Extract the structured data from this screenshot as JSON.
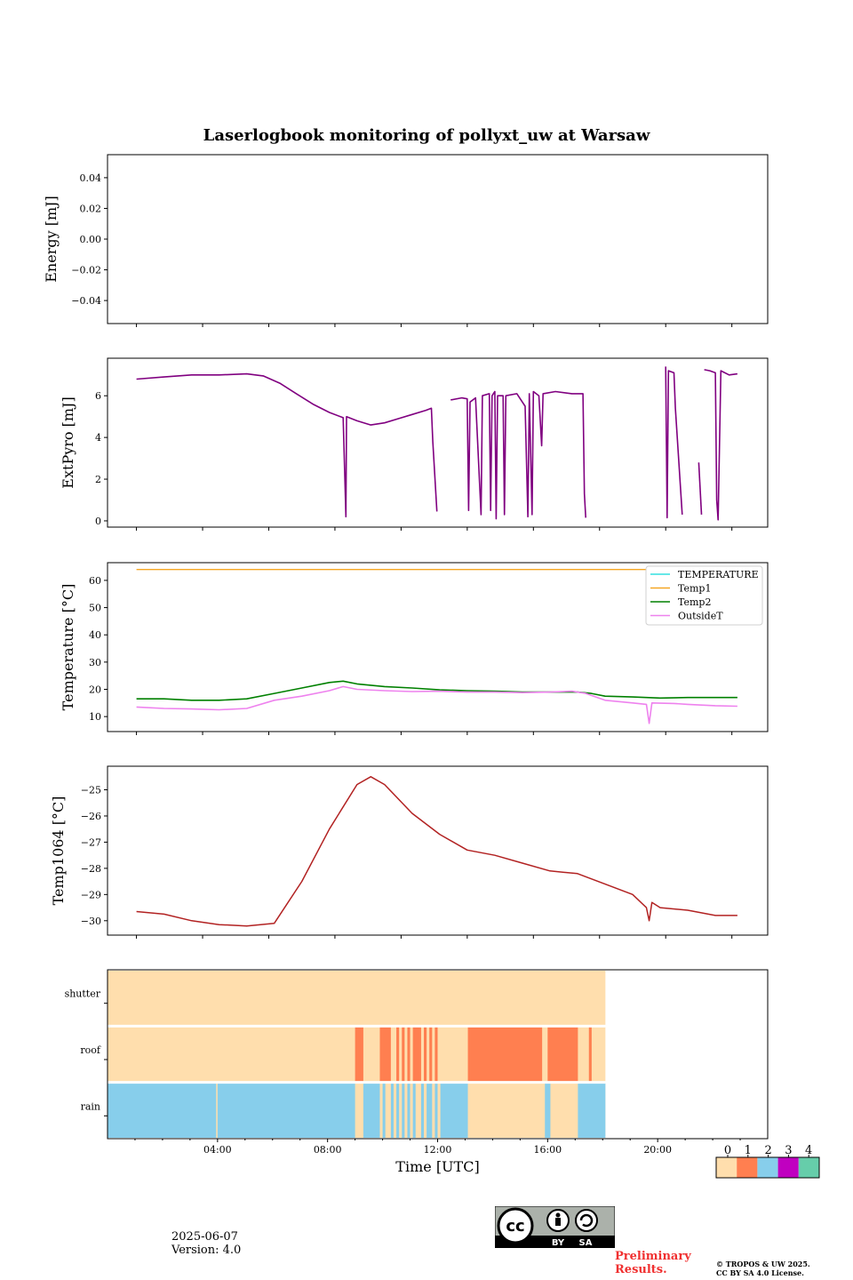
{
  "title": "Laserlogbook monitoring of pollyxt_uw at Warsaw",
  "footer": {
    "date": "2025-06-07",
    "version": "Version: 4.0",
    "preliminary_line1": "Preliminary",
    "preliminary_line2": "Results.",
    "copyright_line1": "© TROPOS & UW 2025.",
    "copyright_line2": "CC BY SA 4.0 License.",
    "cc_label": "cc",
    "by_label": "BY",
    "sa_label": "SA"
  },
  "chart_data": [
    {
      "type": "line",
      "name": "energy",
      "ylabel": "Energy [mJ]",
      "ylim": [
        -0.055,
        0.055
      ],
      "yticks": [
        0.04,
        0.02,
        0.0,
        -0.02,
        -0.04
      ],
      "ytick_labels": [
        "0.04",
        "0.02",
        "0.00",
        "−0.02",
        "−0.04"
      ],
      "series": []
    },
    {
      "type": "line",
      "name": "extpyro",
      "ylabel": "ExtPyro [mJ]",
      "ylim": [
        -0.3,
        7.8
      ],
      "yticks": [
        0,
        2,
        4,
        6
      ],
      "ytick_labels": [
        "0",
        "2",
        "4",
        "6"
      ],
      "color": "#800080",
      "segments": [
        [
          [
            0.0,
            6.8
          ],
          [
            1.0,
            6.9
          ],
          [
            2.0,
            7.0
          ],
          [
            3.0,
            7.0
          ],
          [
            4.0,
            7.05
          ],
          [
            4.6,
            6.95
          ],
          [
            5.2,
            6.6
          ],
          [
            5.8,
            6.1
          ],
          [
            6.4,
            5.6
          ],
          [
            7.0,
            5.2
          ],
          [
            7.5,
            4.95
          ],
          [
            7.6,
            0.2
          ],
          [
            7.62,
            5.0
          ],
          [
            8.0,
            4.8
          ],
          [
            8.5,
            4.6
          ],
          [
            9.0,
            4.7
          ],
          [
            9.5,
            4.9
          ],
          [
            10.0,
            5.1
          ],
          [
            10.5,
            5.3
          ],
          [
            10.7,
            5.4
          ],
          [
            10.75,
            3.8
          ],
          [
            10.9,
            0.45
          ]
        ],
        [
          [
            11.4,
            5.8
          ],
          [
            11.8,
            5.9
          ],
          [
            12.0,
            5.85
          ],
          [
            12.05,
            0.5
          ],
          [
            12.1,
            5.7
          ],
          [
            12.3,
            5.9
          ],
          [
            12.5,
            0.3
          ],
          [
            12.55,
            6.0
          ],
          [
            12.8,
            6.1
          ],
          [
            12.85,
            0.5
          ],
          [
            12.9,
            6.0
          ],
          [
            13.0,
            6.2
          ],
          [
            13.05,
            0.1
          ],
          [
            13.1,
            6.0
          ],
          [
            13.3,
            6.0
          ],
          [
            13.35,
            0.3
          ],
          [
            13.4,
            6.0
          ],
          [
            13.8,
            6.1
          ],
          [
            14.1,
            5.5
          ],
          [
            14.2,
            0.2
          ],
          [
            14.25,
            6.1
          ],
          [
            14.35,
            0.3
          ],
          [
            14.4,
            6.2
          ],
          [
            14.6,
            6.0
          ],
          [
            14.7,
            3.6
          ],
          [
            14.75,
            6.1
          ],
          [
            15.2,
            6.2
          ],
          [
            15.8,
            6.1
          ],
          [
            16.2,
            6.1
          ],
          [
            16.25,
            1.3
          ],
          [
            16.3,
            0.15
          ]
        ],
        [
          [
            19.2,
            7.4
          ],
          [
            19.25,
            0.15
          ],
          [
            19.3,
            7.2
          ],
          [
            19.5,
            7.1
          ],
          [
            19.55,
            5.4
          ],
          [
            19.8,
            0.3
          ]
        ],
        [
          [
            20.4,
            2.8
          ],
          [
            20.5,
            0.3
          ]
        ],
        [
          [
            20.6,
            7.25
          ],
          [
            20.8,
            7.2
          ],
          [
            21.0,
            7.1
          ],
          [
            21.05,
            1.0
          ],
          [
            21.1,
            0.05
          ],
          [
            21.2,
            7.2
          ],
          [
            21.5,
            7.0
          ],
          [
            21.8,
            7.05
          ]
        ]
      ]
    },
    {
      "type": "line",
      "name": "temperature",
      "ylabel": "Temperature [°C]",
      "ylim": [
        4.5,
        66.5
      ],
      "yticks": [
        10,
        20,
        30,
        40,
        50,
        60
      ],
      "ytick_labels": [
        "10",
        "20",
        "30",
        "40",
        "50",
        "60"
      ],
      "legend": [
        "TEMPERATURE",
        "Temp1",
        "Temp2",
        "OutsideT"
      ],
      "series": [
        {
          "name": "TEMPERATURE",
          "color": "#33e0e0",
          "points": []
        },
        {
          "name": "Temp1",
          "color": "#f5a623",
          "points": [
            [
              0.0,
              64.0
            ],
            [
              18.5,
              64.0
            ]
          ]
        },
        {
          "name": "Temp2",
          "color": "#008000",
          "points": [
            [
              0.0,
              16.5
            ],
            [
              1.0,
              16.5
            ],
            [
              2.0,
              16.0
            ],
            [
              3.0,
              16.0
            ],
            [
              4.0,
              16.5
            ],
            [
              5.0,
              18.5
            ],
            [
              6.0,
              20.5
            ],
            [
              7.0,
              22.5
            ],
            [
              7.5,
              23.0
            ],
            [
              8.0,
              22.0
            ],
            [
              9.0,
              21.0
            ],
            [
              10.0,
              20.5
            ],
            [
              11.0,
              19.8
            ],
            [
              12.0,
              19.5
            ],
            [
              13.0,
              19.3
            ],
            [
              14.0,
              19.0
            ],
            [
              15.0,
              19.0
            ],
            [
              16.0,
              19.0
            ],
            [
              16.5,
              18.5
            ],
            [
              17.0,
              17.5
            ],
            [
              18.0,
              17.2
            ],
            [
              19.0,
              16.8
            ],
            [
              20.0,
              17.0
            ],
            [
              21.0,
              17.0
            ],
            [
              21.8,
              17.0
            ]
          ]
        },
        {
          "name": "OutsideT",
          "color": "#ee82ee",
          "points": [
            [
              0.0,
              13.5
            ],
            [
              1.0,
              13.0
            ],
            [
              2.0,
              12.8
            ],
            [
              3.0,
              12.5
            ],
            [
              4.0,
              13.0
            ],
            [
              5.0,
              16.0
            ],
            [
              6.0,
              17.5
            ],
            [
              7.0,
              19.5
            ],
            [
              7.5,
              21.0
            ],
            [
              8.0,
              20.0
            ],
            [
              9.0,
              19.5
            ],
            [
              10.0,
              19.2
            ],
            [
              11.0,
              19.3
            ],
            [
              12.0,
              19.0
            ],
            [
              13.0,
              19.0
            ],
            [
              14.0,
              18.8
            ],
            [
              15.0,
              19.0
            ],
            [
              15.8,
              19.3
            ],
            [
              16.3,
              18.5
            ],
            [
              17.0,
              16.0
            ],
            [
              18.0,
              15.0
            ],
            [
              18.5,
              14.5
            ],
            [
              18.6,
              7.5
            ],
            [
              18.7,
              15.0
            ],
            [
              19.5,
              14.8
            ],
            [
              20.0,
              14.5
            ],
            [
              21.0,
              14.0
            ],
            [
              21.8,
              13.8
            ]
          ]
        }
      ]
    },
    {
      "type": "line",
      "name": "temp1064",
      "ylabel": "Temp1064 [°C]",
      "ylim": [
        -30.55,
        -24.1
      ],
      "yticks": [
        -25,
        -26,
        -27,
        -28,
        -29,
        -30
      ],
      "ytick_labels": [
        "−25",
        "−26",
        "−27",
        "−28",
        "−29",
        "−30"
      ],
      "color": "#b22222",
      "points": [
        [
          0.0,
          -29.65
        ],
        [
          1.0,
          -29.75
        ],
        [
          2.0,
          -30.0
        ],
        [
          3.0,
          -30.15
        ],
        [
          4.0,
          -30.2
        ],
        [
          5.0,
          -30.1
        ],
        [
          6.0,
          -28.5
        ],
        [
          7.0,
          -26.5
        ],
        [
          8.0,
          -24.8
        ],
        [
          8.5,
          -24.5
        ],
        [
          9.0,
          -24.8
        ],
        [
          10.0,
          -25.9
        ],
        [
          11.0,
          -26.7
        ],
        [
          12.0,
          -27.3
        ],
        [
          13.0,
          -27.5
        ],
        [
          14.0,
          -27.8
        ],
        [
          15.0,
          -28.1
        ],
        [
          16.0,
          -28.2
        ],
        [
          17.0,
          -28.6
        ],
        [
          18.0,
          -29.0
        ],
        [
          18.5,
          -29.5
        ],
        [
          18.6,
          -30.0
        ],
        [
          18.7,
          -29.3
        ],
        [
          19.0,
          -29.5
        ],
        [
          20.0,
          -29.6
        ],
        [
          21.0,
          -29.8
        ],
        [
          21.8,
          -29.8
        ]
      ]
    },
    {
      "type": "heatmap",
      "name": "status",
      "rows": [
        "shutter",
        "roof",
        "rain"
      ],
      "xlabel": "Time [UTC]",
      "xlim": [
        0,
        24
      ],
      "xticks": [
        4,
        8,
        12,
        16,
        20
      ],
      "xtick_labels": [
        "04:00",
        "08:00",
        "12:00",
        "16:00",
        "20:00"
      ],
      "data_end": 18.1,
      "colorbar": {
        "labels": [
          "0",
          "1",
          "2",
          "3",
          "4"
        ],
        "colors": [
          "#ffdead",
          "#ff7f50",
          "#87ceeb",
          "#c000c0",
          "#66cdaa"
        ]
      },
      "row_events": {
        "shutter": [],
        "roof": [
          [
            9.0,
            9.3
          ],
          [
            9.9,
            10.3
          ],
          [
            10.5,
            10.6
          ],
          [
            10.7,
            10.8
          ],
          [
            10.9,
            11.0
          ],
          [
            11.1,
            11.4
          ],
          [
            11.5,
            11.6
          ],
          [
            11.7,
            11.8
          ],
          [
            11.9,
            12.0
          ],
          [
            13.1,
            15.8
          ],
          [
            16.0,
            17.1
          ],
          [
            17.5,
            17.6
          ]
        ],
        "rain": [
          [
            0.0,
            3.95
          ],
          [
            4.0,
            9.0
          ],
          [
            9.3,
            9.9
          ],
          [
            10.0,
            10.1
          ],
          [
            10.3,
            10.4
          ],
          [
            10.5,
            10.6
          ],
          [
            10.7,
            10.8
          ],
          [
            10.9,
            11.0
          ],
          [
            11.1,
            11.2
          ],
          [
            11.4,
            11.5
          ],
          [
            11.6,
            11.8
          ],
          [
            11.9,
            12.0
          ],
          [
            12.1,
            13.1
          ],
          [
            15.9,
            16.1
          ],
          [
            17.1,
            18.1
          ]
        ]
      },
      "row_event_value": {
        "shutter": 1,
        "roof": 1,
        "rain": 2
      }
    }
  ],
  "time_axis": {
    "data_xlim": [
      -1.05,
      22.9
    ],
    "ticks_hours": [
      0,
      2.4,
      4.8,
      7.2,
      9.6,
      12.0,
      14.4,
      16.8,
      19.2,
      21.6
    ]
  }
}
